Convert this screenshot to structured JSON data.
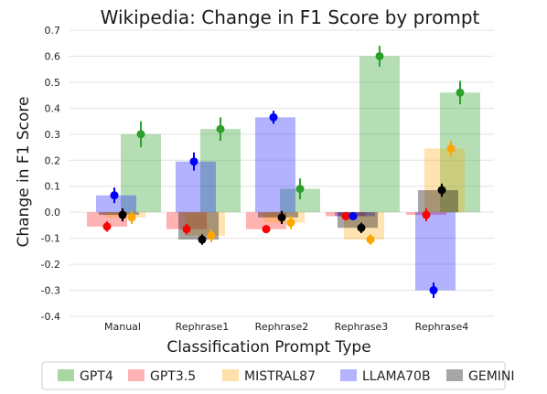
{
  "chart_data": {
    "type": "bar",
    "title": "Wikipedia: Change in F1 Score by prompt",
    "xlabel": "Classification Prompt Type",
    "ylabel": "Change in F1 Score",
    "categories": [
      "Manual",
      "Rephrase1",
      "Rephrase2",
      "Rephrase3",
      "Rephrase4"
    ],
    "ylim": [
      -0.4,
      0.7
    ],
    "yticks": [
      "-0.4",
      "-0.3",
      "-0.2",
      "-0.1",
      "0.0",
      "0.1",
      "0.2",
      "0.3",
      "0.4",
      "0.5",
      "0.6",
      "0.7"
    ],
    "grid": true,
    "legend_position": "bottom",
    "series": [
      {
        "name": "GPT4",
        "color": "#2ca02c",
        "bar": [
          0.3,
          0.32,
          0.09,
          0.6,
          0.46
        ],
        "point": [
          0.3,
          0.32,
          0.09,
          0.6,
          0.46
        ],
        "err": [
          0.05,
          0.045,
          0.04,
          0.04,
          0.045
        ]
      },
      {
        "name": "GPT3.5",
        "color": "#ff0000",
        "bar": [
          -0.055,
          -0.065,
          -0.065,
          -0.015,
          -0.01
        ],
        "point": [
          -0.055,
          -0.065,
          -0.065,
          -0.015,
          -0.01
        ],
        "err": [
          0.02,
          0.02,
          0.015,
          0.015,
          0.025
        ]
      },
      {
        "name": "MISTRAL87",
        "color": "#ffa500",
        "bar": [
          -0.02,
          -0.09,
          -0.04,
          -0.105,
          0.245
        ],
        "point": [
          -0.02,
          -0.09,
          -0.04,
          -0.105,
          0.245
        ],
        "err": [
          0.025,
          0.025,
          0.025,
          0.02,
          0.03
        ]
      },
      {
        "name": "LLAMA70B",
        "color": "#0000ff",
        "bar": [
          0.065,
          0.195,
          0.365,
          -0.015,
          -0.3
        ],
        "point": [
          0.065,
          0.195,
          0.365,
          -0.015,
          -0.3
        ],
        "err": [
          0.03,
          0.035,
          0.025,
          0.01,
          0.03
        ]
      },
      {
        "name": "GEMINI",
        "color": "#000000",
        "bar": [
          -0.01,
          -0.105,
          -0.02,
          -0.06,
          0.085
        ],
        "point": [
          -0.01,
          -0.105,
          -0.02,
          -0.06,
          0.085
        ],
        "err": [
          0.025,
          0.02,
          0.025,
          0.02,
          0.025
        ]
      }
    ],
    "legend_colors": {
      "GPT4": "#a6d8a0",
      "GPT3.5": "#ffb3b3",
      "MISTRAL87": "#ffe0a8",
      "LLAMA70B": "#b3b3ff",
      "GEMINI": "#a6a6a6"
    }
  }
}
